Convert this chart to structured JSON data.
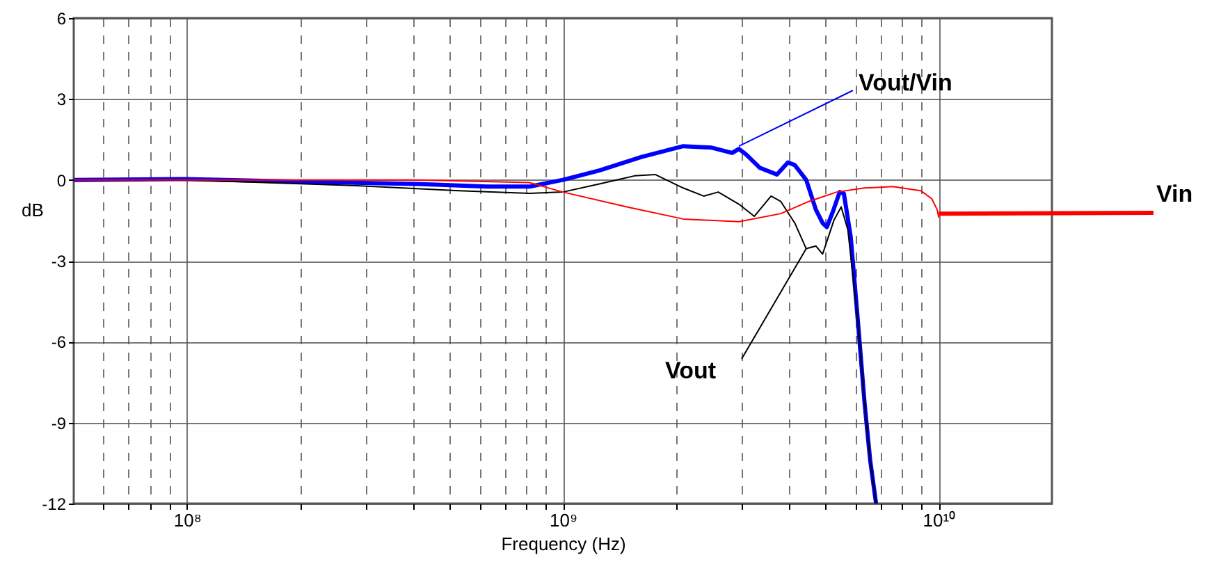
{
  "chart_data": {
    "type": "line",
    "xlabel": "Frequency (Hz)",
    "ylabel": "dB",
    "log": "x",
    "grid": true,
    "xlim": [
      50000000.0,
      20000000000.0
    ],
    "xticks": [
      {
        "value": 60000000.0,
        "label": null
      },
      {
        "value": 70000000.0,
        "label": null
      },
      {
        "value": 80000000.0,
        "label": null
      },
      {
        "value": 90000000.0,
        "label": null
      },
      {
        "value": 100000000.0,
        "label": "10⁸"
      },
      {
        "value": 200000000.0,
        "label": null
      },
      {
        "value": 300000000.0,
        "label": null
      },
      {
        "value": 400000000.0,
        "label": null
      },
      {
        "value": 500000000.0,
        "label": null
      },
      {
        "value": 600000000.0,
        "label": null
      },
      {
        "value": 700000000.0,
        "label": null
      },
      {
        "value": 800000000.0,
        "label": null
      },
      {
        "value": 900000000.0,
        "label": null
      },
      {
        "value": 1000000000.0,
        "label": "10⁹"
      },
      {
        "value": 2000000000.0,
        "label": null
      },
      {
        "value": 3000000000.0,
        "label": null
      },
      {
        "value": 4000000000.0,
        "label": null
      },
      {
        "value": 5000000000.0,
        "label": null
      },
      {
        "value": 6000000000.0,
        "label": null
      },
      {
        "value": 7000000000.0,
        "label": null
      },
      {
        "value": 8000000000.0,
        "label": null
      },
      {
        "value": 9000000000.0,
        "label": null
      },
      {
        "value": 10000000000.0,
        "label": "10¹⁰"
      }
    ],
    "ylim": [
      -12,
      6
    ],
    "yticks": [
      -12,
      -9,
      -6,
      -3,
      0,
      3,
      6
    ],
    "series": [
      {
        "color": "#0000ff",
        "x": [
          50000000.0,
          100000000.0,
          175000000.0,
          268000000.0,
          410000000.0,
          630000000.0,
          815000000.0,
          1000000000.0,
          1250000000.0,
          1620000000.0,
          2090000000.0,
          2480000000.0,
          2820000000.0,
          2940000000.0,
          3070000000.0,
          3340000000.0,
          3710000000.0,
          3970000000.0,
          4140000000.0,
          4440000000.0,
          4710000000.0,
          4910000000.0,
          5040000000.0,
          5220000000.0,
          5450000000.0,
          5590000000.0,
          5830000000.0,
          6090000000.0,
          6350000000.0,
          6570000000.0,
          6810000000.0
        ],
        "values": [
          0,
          0.03,
          -0.05,
          -0.1,
          -0.15,
          -0.25,
          -0.25,
          0,
          0.35,
          0.85,
          1.25,
          1.2,
          1.0,
          1.15,
          0.95,
          0.45,
          0.2,
          0.65,
          0.55,
          0,
          -1.1,
          -1.6,
          -1.75,
          -1.2,
          -0.45,
          -0.5,
          -2.1,
          -5.2,
          -8.3,
          -10.4,
          -12
        ]
      },
      {
        "color": "#000000",
        "x": [
          50000000.0,
          100000000.0,
          268000000.0,
          530000000.0,
          815000000.0,
          1000000000.0,
          1250000000.0,
          1550000000.0,
          1760000000.0,
          2090000000.0,
          2370000000.0,
          2590000000.0,
          2940000000.0,
          3230000000.0,
          3580000000.0,
          3800000000.0,
          4140000000.0,
          4440000000.0,
          4710000000.0,
          4910000000.0,
          5260000000.0,
          5500000000.0,
          5730000000.0,
          6090000000.0,
          6350000000.0,
          6570000000.0,
          6810000000.0
        ],
        "values": [
          0,
          0,
          -0.2,
          -0.4,
          -0.5,
          -0.45,
          -0.15,
          0.15,
          0.2,
          -0.3,
          -0.6,
          -0.45,
          -0.9,
          -1.35,
          -0.6,
          -0.8,
          -1.6,
          -2.55,
          -2.45,
          -2.75,
          -1.5,
          -1.0,
          -1.85,
          -5.2,
          -8.3,
          -10.4,
          -12
        ]
      },
      {
        "color": "#ff0000",
        "x": [
          50000000.0,
          100000000.0,
          410000000.0,
          815000000.0,
          1000000000.0,
          1480000000.0,
          2090000000.0,
          2940000000.0,
          3800000000.0,
          4510000000.0,
          5350000000.0,
          6350000000.0,
          7540000000.0,
          8950000000.0,
          9580000000.0,
          9900000000.0,
          10000000000.0
        ],
        "values": [
          0,
          0,
          0,
          -0.1,
          -0.45,
          -1.0,
          -1.45,
          -1.55,
          -1.25,
          -0.8,
          -0.45,
          -0.3,
          -0.25,
          -0.4,
          -0.7,
          -1.1,
          -1.4
        ]
      }
    ],
    "annotations": [
      {
        "text": "Vout/Vin",
        "x": 2940000000.0,
        "y": 1.25
      },
      {
        "text": "Vout",
        "x": 4440000000.0,
        "y": -2.55
      },
      {
        "text": "Vin",
        "x": 10000000000.0,
        "y": -1.25
      }
    ]
  }
}
